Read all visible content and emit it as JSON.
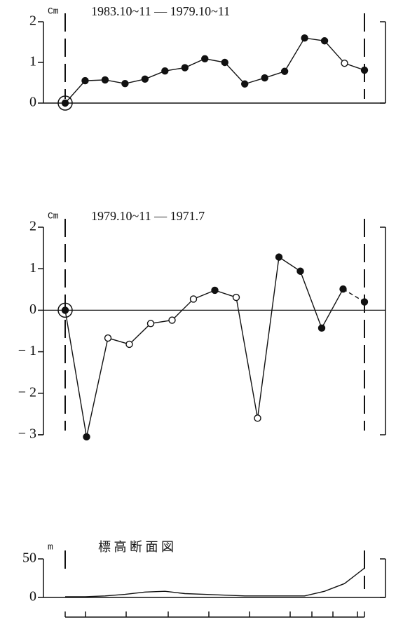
{
  "chart_data": [
    {
      "type": "line",
      "unit": "Cm",
      "title": "1983.10~11 — 1979.10~11",
      "categories": [
        null,
        null,
        null,
        null,
        null,
        null,
        null,
        null,
        null,
        null,
        null,
        null,
        null,
        null,
        null,
        null
      ],
      "values": [
        0,
        0.55,
        0.57,
        0.48,
        0.59,
        0.79,
        0.87,
        1.09,
        1.0,
        0.47,
        0.62,
        0.78,
        1.6,
        1.53,
        0.98,
        0.81
      ],
      "markers": [
        "circled",
        "filled",
        "filled",
        "filled",
        "filled",
        "filled",
        "filled",
        "filled",
        "filled",
        "filled",
        "filled",
        "filled",
        "filled",
        "filled",
        "open",
        "filled"
      ],
      "color": "#111111",
      "ylim": [
        0,
        2
      ],
      "yticks": [
        0,
        1,
        2
      ]
    },
    {
      "type": "line",
      "unit": "Cm",
      "title": "1979.10~11 — 1971.7",
      "categories": [
        null,
        null,
        null,
        null,
        null,
        null,
        null,
        null,
        null,
        null,
        null,
        null,
        null,
        null,
        null
      ],
      "values": [
        0,
        -3.05,
        -0.67,
        -0.82,
        -0.32,
        -0.24,
        0.27,
        0.48,
        0.31,
        -2.6,
        1.28,
        0.94,
        -0.43,
        0.51,
        0.2
      ],
      "markers": [
        "circled",
        "filled",
        "open",
        "open",
        "open",
        "open",
        "open",
        "filled",
        "open",
        "open",
        "filled",
        "filled",
        "filled",
        "filled",
        "filled"
      ],
      "last_segment_dashed": true,
      "zero_line": true,
      "color": "#111111",
      "ylim": [
        -3,
        2
      ],
      "yticks": [
        {
          "value": -3,
          "label": "− 3"
        },
        {
          "value": -2,
          "label": "− 2"
        },
        {
          "value": -1,
          "label": "− 1"
        },
        0,
        1,
        2
      ]
    },
    {
      "type": "line",
      "unit": "m",
      "title": "標 高 断 面 図",
      "categories": [
        null,
        null,
        null,
        null,
        null,
        null,
        null,
        null,
        null,
        null,
        null,
        null,
        null,
        null,
        null,
        null
      ],
      "values": [
        1,
        1,
        2,
        4,
        7,
        8,
        5,
        4,
        3,
        2,
        2,
        2,
        2,
        8,
        18,
        38
      ],
      "color": "#111111",
      "ylim": [
        0,
        50
      ],
      "yticks": [
        0,
        50
      ]
    }
  ]
}
